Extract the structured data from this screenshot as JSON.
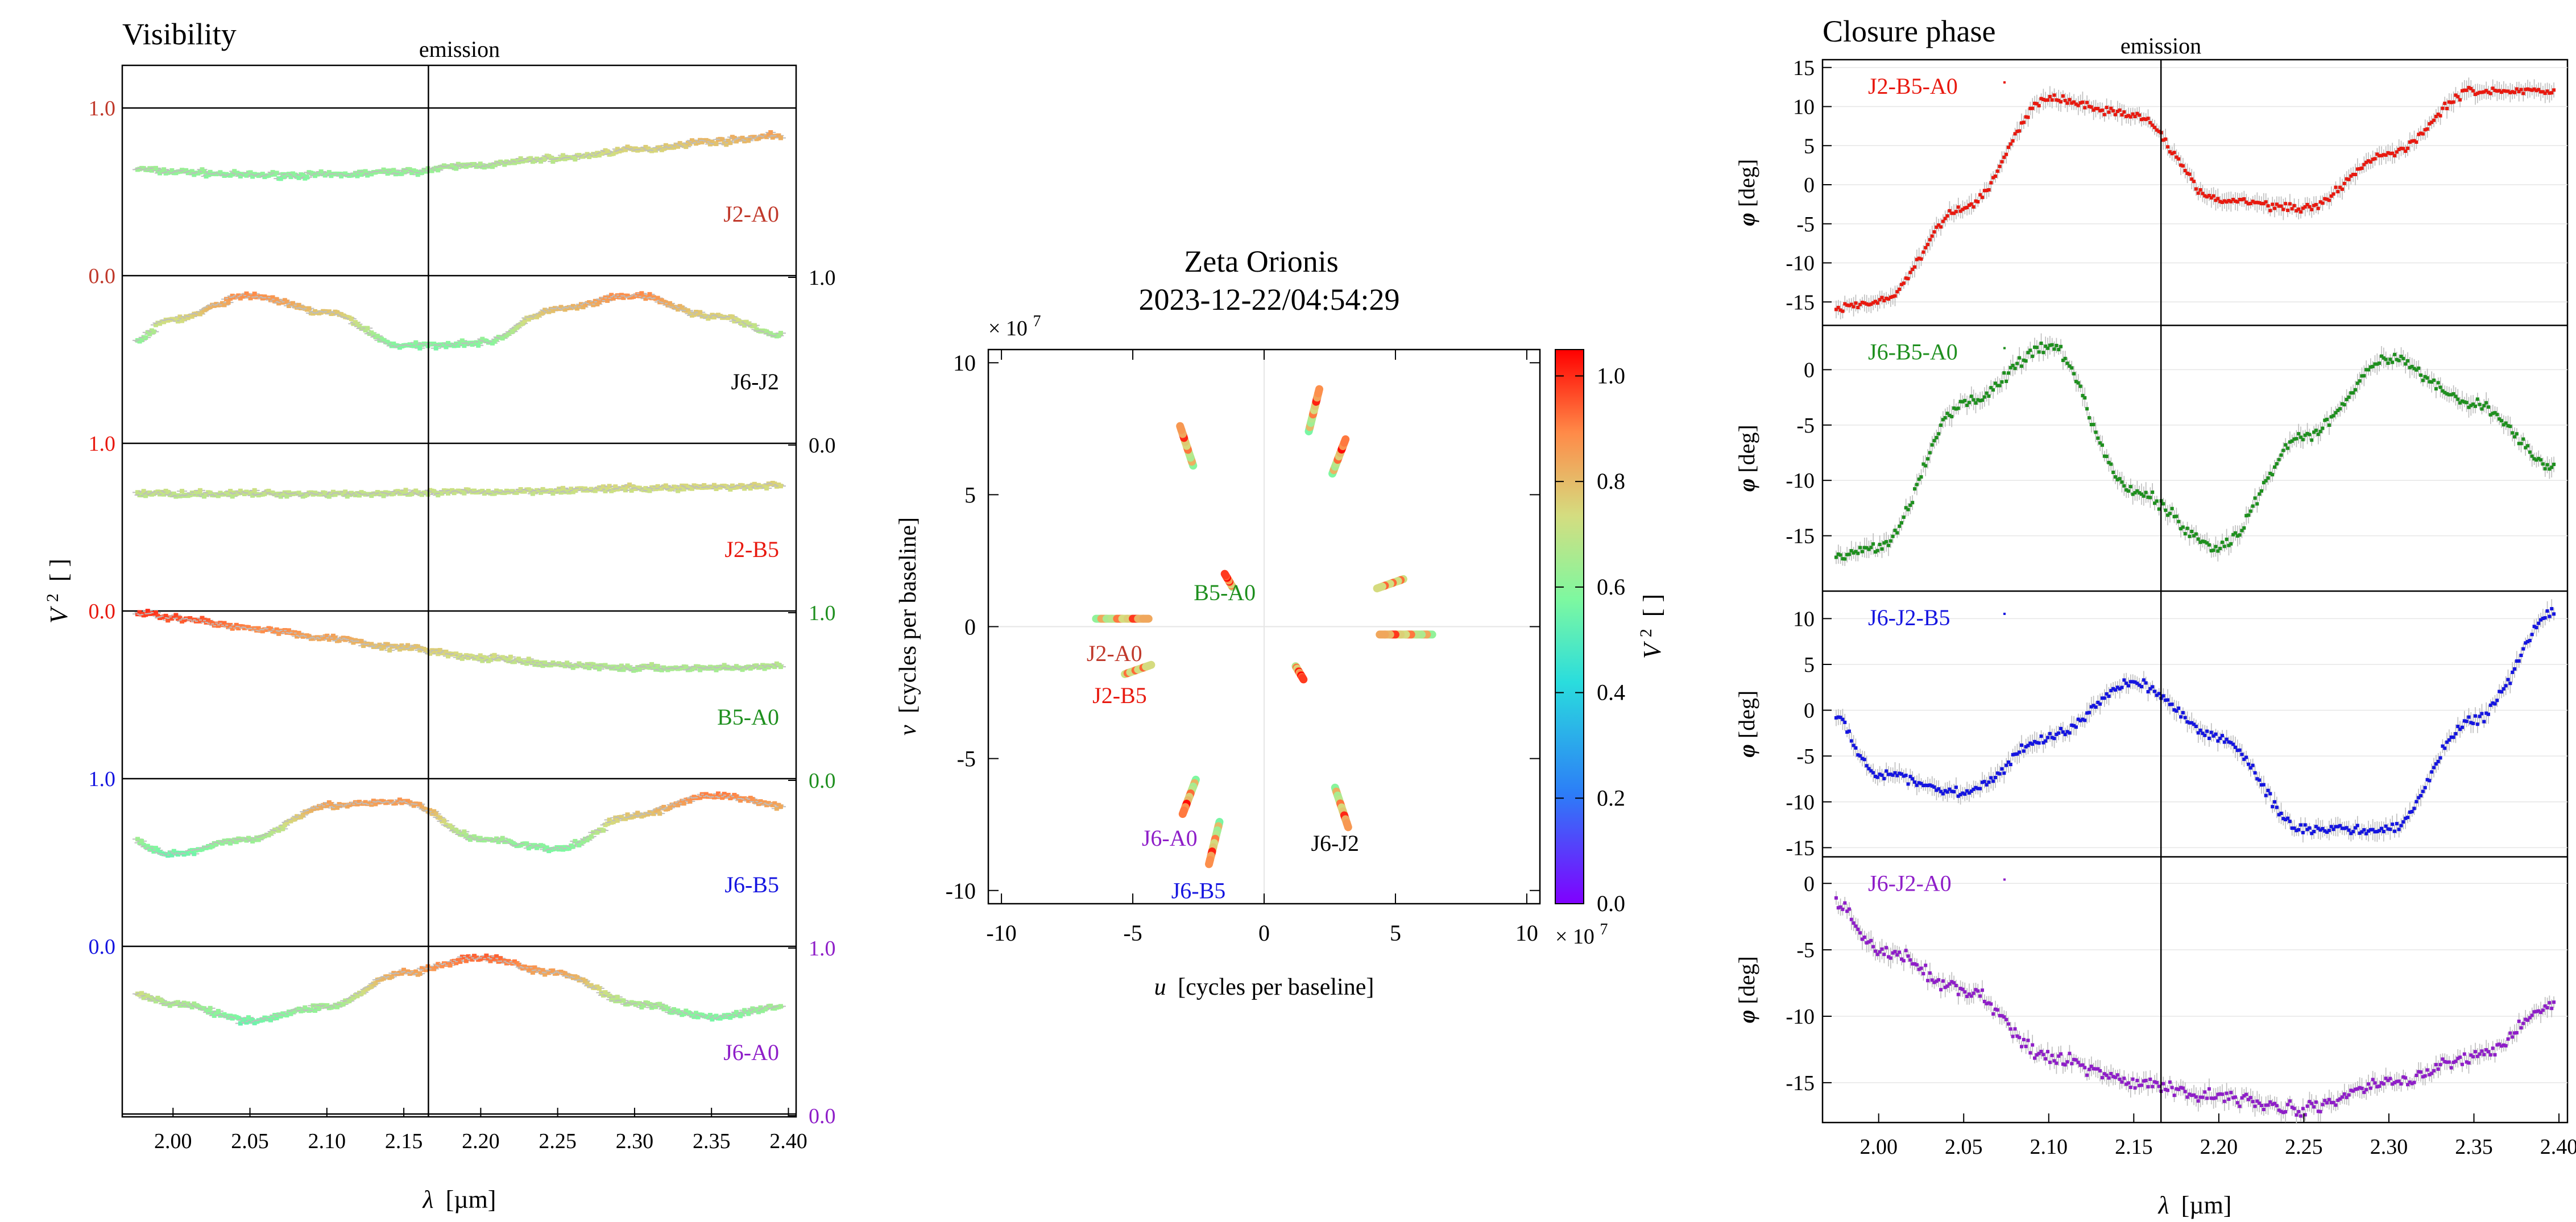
{
  "figure": {
    "visibility_panel_title": "Visibility",
    "closure_phase_panel_title": "Closure phase",
    "emission_label": "emission",
    "emission_wavelength": 2.166
  },
  "chart_data": [
    {
      "type": "line",
      "title": "Visibility",
      "xlabel_symbol": "λ",
      "xlabel_unit": "[µm]",
      "ylabel_symbol": "V",
      "ylabel_unit": "[ ]",
      "xlim": [
        1.967,
        2.405
      ],
      "xticks": [
        "2.00",
        "2.05",
        "2.10",
        "2.15",
        "2.20",
        "2.25",
        "2.30",
        "2.35",
        "2.40"
      ],
      "ylim_per_panel": [
        0,
        1
      ],
      "left_tick_labels": [
        {
          "text": "1.0",
          "color": "#c0392b"
        },
        {
          "text": "0.0",
          "color": "#c0392b"
        },
        {
          "text": "1.0",
          "color": "#e8190f"
        },
        {
          "text": "0.0",
          "color": "#e8190f"
        },
        {
          "text": "1.0",
          "color": "#1515e0"
        },
        {
          "text": "0.0",
          "color": "#1515e0"
        }
      ],
      "right_tick_labels": [
        {
          "text": "1.0",
          "color": "#000000"
        },
        {
          "text": "0.0",
          "color": "#000000"
        },
        {
          "text": "1.0",
          "color": "#1e8f1e"
        },
        {
          "text": "0.0",
          "color": "#1e8f1e"
        },
        {
          "text": "1.0",
          "color": "#8e1ec8"
        },
        {
          "text": "0.0",
          "color": "#8e1ec8"
        }
      ],
      "series": [
        {
          "name": "J2-A0",
          "color": "#c0392b",
          "x": [
            1.97,
            2.0,
            2.05,
            2.1,
            2.15,
            2.2,
            2.25,
            2.3,
            2.35,
            2.4
          ],
          "values": [
            0.64,
            0.62,
            0.6,
            0.6,
            0.62,
            0.66,
            0.7,
            0.75,
            0.8,
            0.84
          ]
        },
        {
          "name": "J6-J2",
          "color": "#000000",
          "x": [
            1.97,
            2.0,
            2.05,
            2.1,
            2.15,
            2.2,
            2.25,
            2.3,
            2.35,
            2.4
          ],
          "values": [
            0.58,
            0.74,
            0.88,
            0.78,
            0.58,
            0.6,
            0.8,
            0.88,
            0.76,
            0.64
          ]
        },
        {
          "name": "J2-B5",
          "color": "#e8190f",
          "x": [
            1.97,
            2.0,
            2.05,
            2.1,
            2.15,
            2.2,
            2.25,
            2.3,
            2.35,
            2.4
          ],
          "values": [
            0.7,
            0.7,
            0.7,
            0.7,
            0.7,
            0.71,
            0.72,
            0.73,
            0.74,
            0.75
          ]
        },
        {
          "name": "B5-A0",
          "color": "#1e8f1e",
          "x": [
            1.97,
            2.0,
            2.05,
            2.1,
            2.15,
            2.2,
            2.25,
            2.3,
            2.35,
            2.4
          ],
          "values": [
            1.0,
            0.96,
            0.9,
            0.84,
            0.78,
            0.72,
            0.68,
            0.66,
            0.66,
            0.67
          ]
        },
        {
          "name": "J6-B5",
          "color": "#1515e0",
          "x": [
            1.97,
            2.0,
            2.05,
            2.1,
            2.15,
            2.2,
            2.25,
            2.3,
            2.35,
            2.4
          ],
          "values": [
            0.64,
            0.55,
            0.64,
            0.84,
            0.86,
            0.64,
            0.58,
            0.78,
            0.9,
            0.84
          ]
        },
        {
          "name": "J6-A0",
          "color": "#8e1ec8",
          "x": [
            1.97,
            2.0,
            2.05,
            2.1,
            2.15,
            2.2,
            2.25,
            2.3,
            2.35,
            2.4
          ],
          "values": [
            0.73,
            0.66,
            0.56,
            0.64,
            0.84,
            0.93,
            0.84,
            0.66,
            0.58,
            0.64
          ]
        }
      ]
    },
    {
      "type": "scatter",
      "title": "Zeta Orionis",
      "subtitle": "2023-12-22/04:54:29",
      "xlabel_symbol": "u",
      "xlabel_text": "[cycles per baseline]",
      "ylabel_symbol": "v",
      "ylabel_text": "[cycles per baseline]",
      "scale_label": "× 10",
      "scale_exponent": "7",
      "xlim": [
        -10.5,
        10.5
      ],
      "ylim": [
        -10.5,
        10.5
      ],
      "xticks": [
        "-10",
        "-5",
        "0",
        "5",
        "10"
      ],
      "yticks": [
        "-10",
        "-5",
        "0",
        "5",
        "10"
      ],
      "colorbar": {
        "label_symbol": "V",
        "label_unit": "[ ]",
        "range": [
          0,
          1.05
        ],
        "ticks": [
          "0.0",
          "0.2",
          "0.4",
          "0.6",
          "0.8",
          "1.0"
        ]
      },
      "tracks": [
        {
          "name": "J2-A0",
          "color": "#c0392b",
          "u": [
            -6.4,
            -4.4
          ],
          "v": [
            0.3,
            0.3
          ],
          "v2": [
            0.6,
            0.85
          ]
        },
        {
          "name": "J2-A0",
          "color": "#c0392b",
          "u": [
            6.4,
            4.4
          ],
          "v": [
            -0.3,
            -0.3
          ],
          "v2": [
            0.6,
            0.85
          ]
        },
        {
          "name": "J2-B5",
          "color": "#e8190f",
          "u": [
            -5.3,
            -4.3
          ],
          "v": [
            -1.8,
            -1.45
          ],
          "v2": [
            0.72,
            0.74
          ]
        },
        {
          "name": "J2-B5",
          "color": "#e8190f",
          "u": [
            5.3,
            4.3
          ],
          "v": [
            1.8,
            1.45
          ],
          "v2": [
            0.72,
            0.74
          ]
        },
        {
          "name": "B5-A0",
          "color": "#1e8f1e",
          "u": [
            -1.2,
            -1.5
          ],
          "v": [
            1.5,
            2.0
          ],
          "v2": [
            0.66,
            1.0
          ]
        },
        {
          "name": "B5-A0",
          "color": "#1e8f1e",
          "u": [
            1.2,
            1.5
          ],
          "v": [
            -1.5,
            -2.0
          ],
          "v2": [
            0.66,
            1.0
          ]
        },
        {
          "name": "J6-J2",
          "color": "#000000",
          "u": [
            2.7,
            3.2
          ],
          "v": [
            -6.1,
            -7.6
          ],
          "v2": [
            0.58,
            0.88
          ]
        },
        {
          "name": "J6-J2",
          "color": "#000000",
          "u": [
            -2.7,
            -3.2
          ],
          "v": [
            6.1,
            7.6
          ],
          "v2": [
            0.58,
            0.88
          ]
        },
        {
          "name": "J6-B5",
          "color": "#1515e0",
          "u": [
            -1.7,
            -2.1
          ],
          "v": [
            -7.4,
            -9.0
          ],
          "v2": [
            0.55,
            0.9
          ]
        },
        {
          "name": "J6-B5",
          "color": "#1515e0",
          "u": [
            1.7,
            2.1
          ],
          "v": [
            7.4,
            9.0
          ],
          "v2": [
            0.55,
            0.9
          ]
        },
        {
          "name": "J6-A0",
          "color": "#8e1ec8",
          "u": [
            -2.6,
            -3.1
          ],
          "v": [
            -5.8,
            -7.1
          ],
          "v2": [
            0.56,
            0.93
          ]
        },
        {
          "name": "J6-A0",
          "color": "#8e1ec8",
          "u": [
            2.6,
            3.1
          ],
          "v": [
            5.8,
            7.1
          ],
          "v2": [
            0.56,
            0.93
          ]
        }
      ]
    },
    {
      "type": "line",
      "title": "Closure phase",
      "xlabel_symbol": "λ",
      "xlabel_unit": "[µm]",
      "ylabel_symbol": "φ",
      "ylabel_unit": "[deg]",
      "xlim": [
        1.967,
        2.405
      ],
      "xticks": [
        "2.00",
        "2.05",
        "2.10",
        "2.15",
        "2.20",
        "2.25",
        "2.30",
        "2.35",
        "2.40"
      ],
      "panels": [
        {
          "name": "J2-B5-A0",
          "color": "#e8190f",
          "ylim": [
            -18,
            16
          ],
          "yticks": [
            "15",
            "10",
            "5",
            "0",
            "-5",
            "-10",
            "-15"
          ],
          "x": [
            1.97,
            2.0,
            2.05,
            2.1,
            2.15,
            2.2,
            2.25,
            2.3,
            2.35,
            2.4
          ],
          "values": [
            -16,
            -15,
            -3,
            11,
            9,
            -2,
            -3,
            4,
            12,
            12
          ]
        },
        {
          "name": "J6-B5-A0",
          "color": "#1e8f1e",
          "ylim": [
            -20,
            4
          ],
          "yticks": [
            "0",
            "-5",
            "-10",
            "-15"
          ],
          "x": [
            1.97,
            2.0,
            2.05,
            2.1,
            2.15,
            2.2,
            2.25,
            2.3,
            2.35,
            2.4
          ],
          "values": [
            -17,
            -16,
            -3,
            2,
            -11,
            -16,
            -6,
            1,
            -3,
            -9
          ]
        },
        {
          "name": "J6-J2-B5",
          "color": "#1515e0",
          "ylim": [
            -16,
            13
          ],
          "yticks": [
            "10",
            "5",
            "0",
            "-5",
            "-10",
            "-15"
          ],
          "x": [
            1.97,
            2.0,
            2.05,
            2.1,
            2.15,
            2.2,
            2.25,
            2.3,
            2.35,
            2.4
          ],
          "values": [
            0,
            -7,
            -9,
            -3,
            3,
            -3,
            -13,
            -13,
            -1,
            11
          ]
        },
        {
          "name": "J6-J2-A0",
          "color": "#8e1ec8",
          "ylim": [
            -18,
            2
          ],
          "yticks": [
            "0",
            "-5",
            "-10",
            "-15"
          ],
          "x": [
            1.97,
            2.0,
            2.05,
            2.1,
            2.15,
            2.2,
            2.25,
            2.3,
            2.35,
            2.4
          ],
          "values": [
            -1,
            -5,
            -8,
            -13,
            -15,
            -16,
            -17,
            -15,
            -13,
            -9
          ]
        }
      ]
    }
  ]
}
